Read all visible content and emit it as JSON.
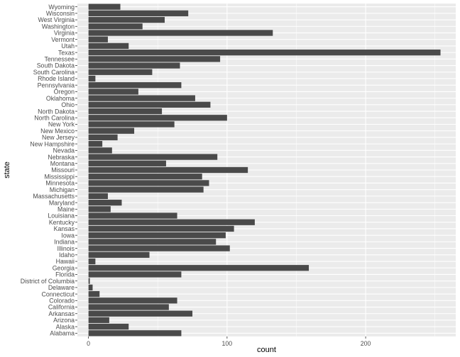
{
  "chart_data": {
    "type": "bar",
    "orientation": "horizontal",
    "xlabel": "count",
    "ylabel": "state",
    "xlim": [
      -8,
      265
    ],
    "x_ticks": [
      0,
      100,
      200
    ],
    "x_tick_labels": [
      "0",
      "100",
      "200"
    ],
    "grid": true,
    "background": "#ebebeb",
    "bar_color": "#4a4a4a",
    "categories": [
      "Alabama",
      "Alaska",
      "Arizona",
      "Arkansas",
      "California",
      "Colorado",
      "Connecticut",
      "Delaware",
      "District of Columbia",
      "Florida",
      "Georgia",
      "Hawaii",
      "Idaho",
      "Illinois",
      "Indiana",
      "Iowa",
      "Kansas",
      "Kentucky",
      "Louisiana",
      "Maine",
      "Maryland",
      "Massachusetts",
      "Michigan",
      "Minnesota",
      "Mississippi",
      "Missouri",
      "Montana",
      "Nebraska",
      "Nevada",
      "New Hampshire",
      "New Jersey",
      "New Mexico",
      "New York",
      "North Carolina",
      "North Dakota",
      "Ohio",
      "Oklahoma",
      "Oregon",
      "Pennsylvania",
      "Rhode Island",
      "South Carolina",
      "South Dakota",
      "Tennessee",
      "Texas",
      "Utah",
      "Vermont",
      "Virginia",
      "Washington",
      "West Virginia",
      "Wisconsin",
      "Wyoming"
    ],
    "values": [
      67,
      29,
      15,
      75,
      58,
      64,
      8,
      3,
      1,
      67,
      159,
      5,
      44,
      102,
      92,
      99,
      105,
      120,
      64,
      16,
      24,
      14,
      83,
      87,
      82,
      115,
      56,
      93,
      17,
      10,
      21,
      33,
      62,
      100,
      53,
      88,
      77,
      36,
      67,
      5,
      46,
      66,
      95,
      254,
      29,
      14,
      133,
      39,
      55,
      72,
      23
    ]
  }
}
